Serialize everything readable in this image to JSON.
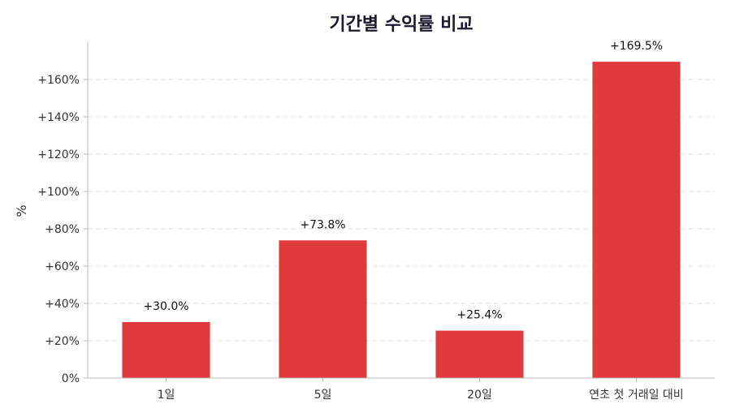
{
  "chart_data": {
    "type": "bar",
    "title": "기간별 수익률 비교",
    "xlabel": "",
    "ylabel": "%",
    "categories": [
      "1일",
      "5일",
      "20일",
      "연초 첫 거래일 대비"
    ],
    "values": [
      30.0,
      73.8,
      25.4,
      169.5
    ],
    "data_labels": [
      "+30.0%",
      "+73.8%",
      "+25.4%",
      "+169.5%"
    ],
    "ylim": [
      0,
      180
    ],
    "yticks": [
      0,
      20,
      40,
      60,
      80,
      100,
      120,
      140,
      160
    ],
    "ytick_labels": [
      "0%",
      "+20%",
      "+40%",
      "+60%",
      "+80%",
      "+100%",
      "+120%",
      "+140%",
      "+160%"
    ],
    "bar_color": "#e03a3c",
    "grid": true
  }
}
